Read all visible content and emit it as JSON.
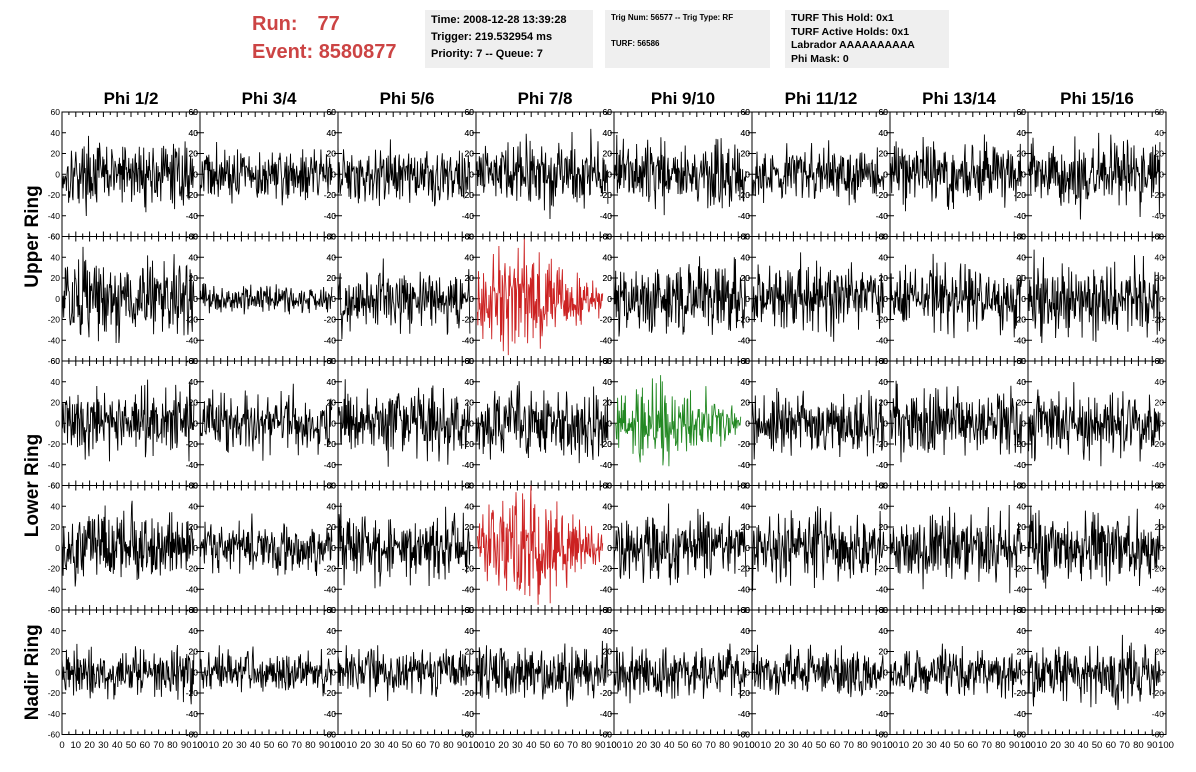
{
  "header": {
    "run_label": "Run:",
    "run_value": "77",
    "event_label": "Event:",
    "event_value": "8580877"
  },
  "time_box": {
    "time": "Time: 2008-12-28 13:39:28",
    "trigger": "Trigger: 219.532954 ms",
    "priority": "Priority: 7 -- Queue: 7"
  },
  "trig_box": {
    "trig": "Trig Num: 56577 -- Trig Type: RF",
    "turf": "TURF: 56586"
  },
  "turf_box": {
    "this_hold": "TURF This Hold: 0x1",
    "active_holds": "TURF Active Holds: 0x1",
    "labrador": "Labrador AAAAAAAAAA",
    "phi_mask": "Phi Mask: 0"
  },
  "columns": [
    "Phi 1/2",
    "Phi 3/4",
    "Phi 5/6",
    "Phi 7/8",
    "Phi 9/10",
    "Phi 11/12",
    "Phi 13/14",
    "Phi 15/16"
  ],
  "row_groups": [
    "Upper Ring",
    "Lower Ring",
    "Nadir Ring"
  ],
  "colors": {
    "trace": "#000000",
    "highlight_red": "#cc2222",
    "highlight_green": "#228822",
    "run_text": "#cc4444",
    "info_bg": "#efefef"
  },
  "chart_data": {
    "type": "line",
    "grid": false,
    "xlim": [
      0,
      100
    ],
    "ylim": [
      -60,
      60
    ],
    "x_ticks": [
      0,
      10,
      20,
      30,
      40,
      50,
      60,
      70,
      80,
      90,
      100
    ],
    "y_ticks": [
      60,
      40,
      20,
      0,
      -20,
      -40,
      -60
    ],
    "x_tick_labels": [
      "0",
      "10",
      "20",
      "30",
      "40",
      "50",
      "60",
      "70",
      "80",
      "90",
      "100"
    ],
    "y_tick_labels": [
      "60",
      "40",
      "20",
      "0",
      "-20",
      "-40",
      "-60"
    ],
    "panels": [
      {
        "row": 0,
        "col": 0,
        "amp": 14,
        "color": "black"
      },
      {
        "row": 0,
        "col": 1,
        "amp": 12,
        "color": "black"
      },
      {
        "row": 0,
        "col": 2,
        "amp": 13,
        "color": "black"
      },
      {
        "row": 0,
        "col": 3,
        "amp": 16,
        "color": "black"
      },
      {
        "row": 0,
        "col": 4,
        "amp": 14,
        "color": "black"
      },
      {
        "row": 0,
        "col": 5,
        "amp": 13,
        "color": "black"
      },
      {
        "row": 0,
        "col": 6,
        "amp": 14,
        "color": "black"
      },
      {
        "row": 0,
        "col": 7,
        "amp": 15,
        "color": "black"
      },
      {
        "row": 1,
        "col": 0,
        "amp": 18,
        "color": "black"
      },
      {
        "row": 1,
        "col": 1,
        "amp": 6,
        "color": "black"
      },
      {
        "row": 1,
        "col": 2,
        "amp": 14,
        "color": "black"
      },
      {
        "row": 1,
        "col": 3,
        "amp": 22,
        "color": "red"
      },
      {
        "row": 1,
        "col": 4,
        "amp": 16,
        "color": "black"
      },
      {
        "row": 1,
        "col": 5,
        "amp": 15,
        "color": "black"
      },
      {
        "row": 1,
        "col": 6,
        "amp": 16,
        "color": "black"
      },
      {
        "row": 1,
        "col": 7,
        "amp": 17,
        "color": "black"
      },
      {
        "row": 2,
        "col": 0,
        "amp": 15,
        "color": "black"
      },
      {
        "row": 2,
        "col": 1,
        "amp": 13,
        "color": "black"
      },
      {
        "row": 2,
        "col": 2,
        "amp": 15,
        "color": "black"
      },
      {
        "row": 2,
        "col": 3,
        "amp": 15,
        "color": "black"
      },
      {
        "row": 2,
        "col": 4,
        "amp": 18,
        "color": "green"
      },
      {
        "row": 2,
        "col": 5,
        "amp": 14,
        "color": "black"
      },
      {
        "row": 2,
        "col": 6,
        "amp": 15,
        "color": "black"
      },
      {
        "row": 2,
        "col": 7,
        "amp": 15,
        "color": "black"
      },
      {
        "row": 3,
        "col": 0,
        "amp": 15,
        "color": "black"
      },
      {
        "row": 3,
        "col": 1,
        "amp": 12,
        "color": "black"
      },
      {
        "row": 3,
        "col": 2,
        "amp": 15,
        "color": "black"
      },
      {
        "row": 3,
        "col": 3,
        "amp": 24,
        "color": "red"
      },
      {
        "row": 3,
        "col": 4,
        "amp": 15,
        "color": "black"
      },
      {
        "row": 3,
        "col": 5,
        "amp": 15,
        "color": "black"
      },
      {
        "row": 3,
        "col": 6,
        "amp": 15,
        "color": "black"
      },
      {
        "row": 3,
        "col": 7,
        "amp": 16,
        "color": "black"
      },
      {
        "row": 4,
        "col": 0,
        "amp": 11,
        "color": "black"
      },
      {
        "row": 4,
        "col": 1,
        "amp": 9,
        "color": "black"
      },
      {
        "row": 4,
        "col": 2,
        "amp": 11,
        "color": "black"
      },
      {
        "row": 4,
        "col": 3,
        "amp": 13,
        "color": "black"
      },
      {
        "row": 4,
        "col": 4,
        "amp": 11,
        "color": "black"
      },
      {
        "row": 4,
        "col": 5,
        "amp": 11,
        "color": "black"
      },
      {
        "row": 4,
        "col": 6,
        "amp": 11,
        "color": "black"
      },
      {
        "row": 4,
        "col": 7,
        "amp": 13,
        "color": "black"
      }
    ]
  }
}
